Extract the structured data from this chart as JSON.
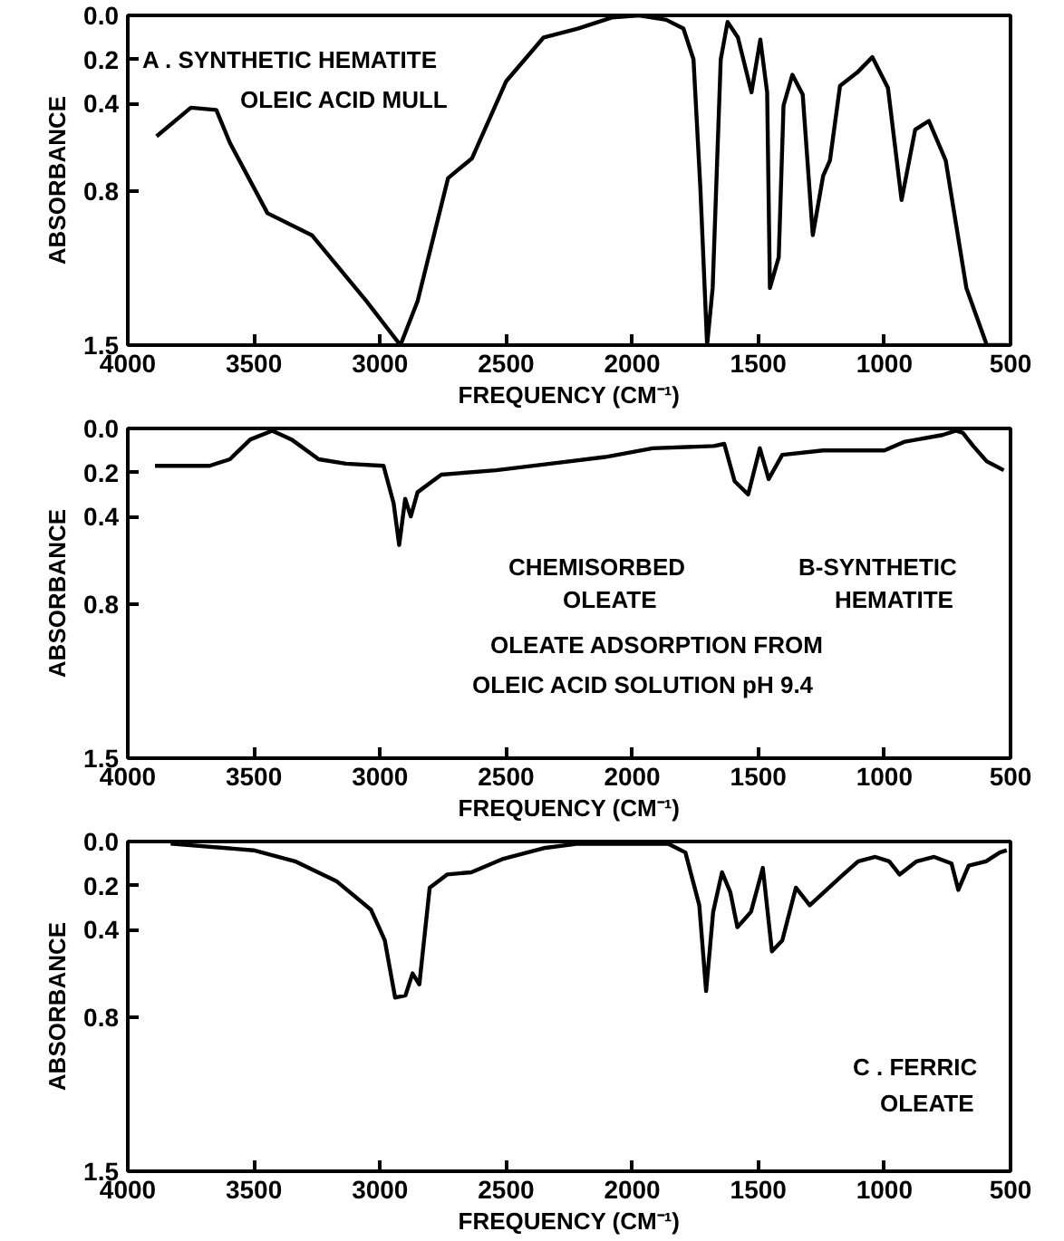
{
  "chart_data": [
    {
      "type": "line",
      "ylabel": "ABSORBANCE",
      "xlabel": "FREQUENCY (CM⁻¹)",
      "annotations": [
        "A . SYNTHETIC HEMATITE",
        "OLEIC ACID MULL"
      ],
      "xlim": [
        4000,
        500
      ],
      "xticks": [
        4000,
        3500,
        3000,
        2500,
        2000,
        1500,
        1000,
        500
      ],
      "ylim": [
        1.5,
        0.0
      ],
      "yticks": [
        {
          "value": 0.0,
          "label": "0.0"
        },
        {
          "value": 0.2,
          "label": "0.2"
        },
        {
          "value": 0.4,
          "label": "0.4"
        },
        {
          "value": 0.8,
          "label": "0.8"
        },
        {
          "value": 1.5,
          "label": "1.5"
        }
      ],
      "color": "#000000",
      "x": [
        3886,
        3750,
        3649,
        3595,
        3446,
        3270,
        3054,
        2919,
        2851,
        2730,
        2635,
        2500,
        2351,
        2216,
        2081,
        1973,
        1865,
        1797,
        1757,
        1730,
        1703,
        1681,
        1649,
        1622,
        1581,
        1527,
        1492,
        1465,
        1454,
        1419,
        1400,
        1365,
        1324,
        1284,
        1243,
        1216,
        1176,
        1108,
        1048,
        986,
        932,
        878,
        824,
        757,
        675,
        594,
        513
      ],
      "values": [
        0.55,
        0.42,
        0.43,
        0.58,
        0.9,
        1.0,
        1.3,
        1.5,
        1.3,
        0.74,
        0.65,
        0.3,
        0.1,
        0.06,
        0.01,
        0.0,
        0.02,
        0.06,
        0.2,
        0.78,
        1.5,
        1.24,
        0.2,
        0.03,
        0.1,
        0.35,
        0.11,
        0.35,
        1.24,
        1.1,
        0.41,
        0.27,
        0.36,
        1.0,
        0.73,
        0.66,
        0.32,
        0.26,
        0.19,
        0.33,
        0.84,
        0.52,
        0.48,
        0.66,
        1.24,
        1.5,
        1.5
      ]
    },
    {
      "type": "line",
      "ylabel": "ABSORBANCE",
      "xlabel": "FREQUENCY (CM⁻¹)",
      "annotations": [
        "CHEMISORBED",
        "OLEATE",
        "B-SYNTHETIC",
        "HEMATITE",
        "OLEATE ADSORPTION FROM",
        "OLEIC ACID SOLUTION pH 9.4"
      ],
      "xlim": [
        4000,
        500
      ],
      "xticks": [
        4000,
        3500,
        3000,
        2500,
        2000,
        1500,
        1000,
        500
      ],
      "ylim": [
        1.5,
        0.0
      ],
      "yticks": [
        {
          "value": 0.0,
          "label": "0.0"
        },
        {
          "value": 0.2,
          "label": "0.2"
        },
        {
          "value": 0.4,
          "label": "0.4"
        },
        {
          "value": 0.8,
          "label": "0.8"
        },
        {
          "value": 1.5,
          "label": "1.5"
        }
      ],
      "color": "#000000",
      "x": [
        3892,
        3676,
        3595,
        3514,
        3427,
        3351,
        3243,
        3135,
        2986,
        2946,
        2924,
        2900,
        2878,
        2851,
        2757,
        2540,
        2324,
        2108,
        1919,
        1676,
        1635,
        1594,
        1540,
        1494,
        1459,
        1405,
        1243,
        1108,
        1000,
        919,
        770,
        716,
        689,
        648,
        594,
        527
      ],
      "values": [
        0.17,
        0.17,
        0.14,
        0.05,
        0.01,
        0.05,
        0.14,
        0.16,
        0.17,
        0.34,
        0.53,
        0.32,
        0.4,
        0.29,
        0.21,
        0.19,
        0.16,
        0.13,
        0.09,
        0.08,
        0.07,
        0.24,
        0.3,
        0.09,
        0.23,
        0.12,
        0.1,
        0.1,
        0.1,
        0.06,
        0.03,
        0.01,
        0.02,
        0.08,
        0.15,
        0.19
      ]
    },
    {
      "type": "line",
      "ylabel": "ABSORBANCE",
      "xlabel": "FREQUENCY (CM⁻¹)",
      "annotations": [
        "C . FERRIC",
        "OLEATE"
      ],
      "xlim": [
        4000,
        500
      ],
      "xticks": [
        4000,
        3500,
        3000,
        2500,
        2000,
        1500,
        1000,
        500
      ],
      "ylim": [
        1.5,
        0.0
      ],
      "yticks": [
        {
          "value": 0.0,
          "label": "0.0"
        },
        {
          "value": 0.2,
          "label": "0.2"
        },
        {
          "value": 0.4,
          "label": "0.4"
        },
        {
          "value": 0.8,
          "label": "0.8"
        },
        {
          "value": 1.5,
          "label": "1.5"
        }
      ],
      "color": "#000000",
      "x": [
        3830,
        3501,
        3337,
        3173,
        3036,
        3000,
        2981,
        2940,
        2899,
        2871,
        2844,
        2803,
        2734,
        2638,
        2515,
        2351,
        2214,
        1857,
        1789,
        1734,
        1707,
        1679,
        1644,
        1611,
        1583,
        1529,
        1482,
        1446,
        1405,
        1351,
        1296,
        1173,
        1104,
        1036,
        981,
        940,
        872,
        803,
        734,
        707,
        666,
        597,
        543,
        515
      ],
      "values": [
        0.01,
        0.04,
        0.09,
        0.18,
        0.31,
        0.4,
        0.45,
        0.71,
        0.7,
        0.6,
        0.65,
        0.21,
        0.15,
        0.14,
        0.08,
        0.03,
        0.01,
        0.01,
        0.05,
        0.29,
        0.68,
        0.32,
        0.14,
        0.23,
        0.39,
        0.32,
        0.12,
        0.5,
        0.45,
        0.21,
        0.29,
        0.16,
        0.09,
        0.07,
        0.09,
        0.15,
        0.09,
        0.07,
        0.1,
        0.22,
        0.11,
        0.09,
        0.05,
        0.04
      ]
    }
  ]
}
